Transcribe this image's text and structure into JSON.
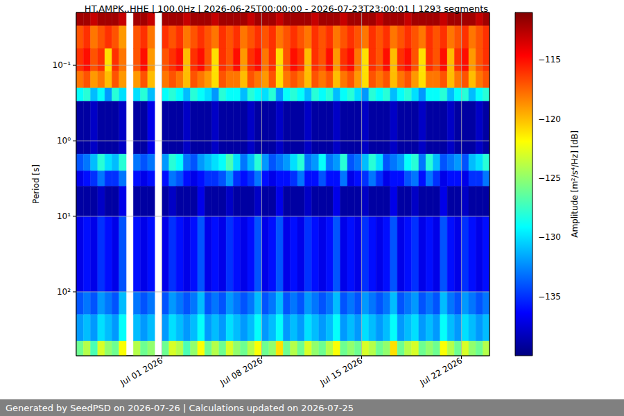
{
  "chart_data": {
    "type": "heatmap",
    "title": "HT.AMPK..HHE | 100.0Hz | 2026-06-25T00:00:00 - 2026-07-23T23:00:01 | 1293 segments",
    "footer": "Generated by SeedPSD on 2026-07-26 | Calculations updated on 2026-07-25",
    "ylabel": "Period [s]",
    "log": "y",
    "grid": true,
    "xlim": [
      "2026-06-25T00:00:00",
      "2026-07-23T23:00:01"
    ],
    "xticks": [
      {
        "value": "2026-07-01",
        "label": "Jul 01 2026"
      },
      {
        "value": "2026-07-08",
        "label": "Jul 08 2026"
      },
      {
        "value": "2026-07-15",
        "label": "Jul 15 2026"
      },
      {
        "value": "2026-07-22",
        "label": "Jul 22 2026"
      }
    ],
    "ylim": [
      0.02,
      700
    ],
    "yticks": [
      {
        "value": 0.1,
        "label": "10⁻¹"
      },
      {
        "value": 1,
        "label": "10⁰"
      },
      {
        "value": 10,
        "label": "10¹"
      },
      {
        "value": 100,
        "label": "10²"
      }
    ],
    "x": [
      "2026-06-25T00:00",
      "2026-06-25T12:00",
      "2026-06-26T00:00",
      "2026-06-26T12:00",
      "2026-06-27T00:00",
      "2026-06-27T12:00",
      "2026-06-28T00:00",
      "2026-06-28T12:00",
      "2026-06-29T00:00",
      "2026-06-29T12:00",
      "2026-06-30T00:00",
      "2026-06-30T12:00",
      "2026-07-01T00:00",
      "2026-07-01T12:00",
      "2026-07-02T00:00",
      "2026-07-02T12:00",
      "2026-07-03T00:00",
      "2026-07-03T12:00",
      "2026-07-04T00:00",
      "2026-07-04T12:00",
      "2026-07-05T00:00",
      "2026-07-05T12:00",
      "2026-07-06T00:00",
      "2026-07-06T12:00",
      "2026-07-07T00:00",
      "2026-07-07T12:00",
      "2026-07-08T00:00",
      "2026-07-08T12:00",
      "2026-07-09T00:00",
      "2026-07-09T12:00",
      "2026-07-10T00:00",
      "2026-07-10T12:00",
      "2026-07-11T00:00",
      "2026-07-11T12:00",
      "2026-07-12T00:00",
      "2026-07-12T12:00",
      "2026-07-13T00:00",
      "2026-07-13T12:00",
      "2026-07-14T00:00",
      "2026-07-14T12:00",
      "2026-07-15T00:00",
      "2026-07-15T12:00",
      "2026-07-16T00:00",
      "2026-07-16T12:00",
      "2026-07-17T00:00",
      "2026-07-17T12:00",
      "2026-07-18T00:00",
      "2026-07-18T12:00",
      "2026-07-19T00:00",
      "2026-07-19T12:00",
      "2026-07-20T00:00",
      "2026-07-20T12:00",
      "2026-07-21T00:00",
      "2026-07-21T12:00",
      "2026-07-22T00:00",
      "2026-07-22T12:00",
      "2026-07-23T00:00",
      "2026-07-23T12:00"
    ],
    "period_edges": [
      0.02,
      0.03,
      0.06,
      0.12,
      0.2,
      0.3,
      1.5,
      2.5,
      4,
      10,
      100,
      200,
      450,
      700
    ],
    "cells": [
      [
        -112,
        -112,
        -113,
        -112,
        -112,
        -112,
        -113,
        null,
        -112,
        -112,
        -113,
        null,
        -112,
        -112,
        -112,
        -113,
        -112,
        -112,
        -112,
        -113,
        -112,
        -112,
        -112,
        -112,
        -113,
        -112,
        -112,
        -112,
        -113,
        -112,
        -112,
        -112,
        -112,
        -113,
        -112,
        -112,
        -112,
        -113,
        -112,
        -112,
        -112,
        -112,
        -113,
        -112,
        -112,
        -112,
        -113,
        -112,
        -112,
        -112,
        -112,
        -113,
        -112,
        -112,
        -112,
        -112,
        -113,
        -112
      ],
      [
        -117,
        -116,
        -118,
        -117,
        -116,
        -117,
        -119,
        null,
        -117,
        -116,
        -118,
        null,
        -116,
        -117,
        -116,
        -118,
        -117,
        -116,
        -117,
        -118,
        -116,
        -117,
        -116,
        -118,
        -117,
        -116,
        -117,
        -116,
        -118,
        -117,
        -116,
        -117,
        -118,
        -116,
        -117,
        -116,
        -118,
        -117,
        -116,
        -117,
        -118,
        -116,
        -117,
        -116,
        -118,
        -117,
        -116,
        -117,
        -118,
        -116,
        -117,
        -116,
        -118,
        -117,
        -116,
        -118,
        -117,
        -116
      ],
      [
        -116,
        -115,
        -117,
        -116,
        -121,
        -116,
        -118,
        null,
        -117,
        -115,
        -119,
        null,
        -117,
        -116,
        -115,
        -120,
        -116,
        -115,
        -117,
        -121,
        -116,
        -117,
        -115,
        -119,
        -116,
        -115,
        -118,
        -116,
        -121,
        -117,
        -115,
        -116,
        -120,
        -116,
        -117,
        -115,
        -119,
        -116,
        -115,
        -118,
        -121,
        -116,
        -117,
        -115,
        -120,
        -116,
        -115,
        -117,
        -121,
        -116,
        -117,
        -115,
        -120,
        -116,
        -115,
        -119,
        -117,
        -116
      ],
      [
        -118,
        -117,
        -119,
        -118,
        -120,
        -117,
        -119,
        null,
        -119,
        -117,
        -120,
        null,
        -118,
        -117,
        -118,
        -120,
        -117,
        -118,
        -119,
        -121,
        -117,
        -118,
        -118,
        -120,
        -117,
        -118,
        -119,
        -117,
        -121,
        -118,
        -117,
        -118,
        -120,
        -117,
        -118,
        -117,
        -120,
        -118,
        -117,
        -119,
        -121,
        -117,
        -118,
        -117,
        -120,
        -118,
        -117,
        -119,
        -121,
        -118,
        -118,
        -117,
        -120,
        -118,
        -117,
        -120,
        -118,
        -117
      ],
      [
        -129,
        -128,
        -131,
        -129,
        -132,
        -128,
        -130,
        null,
        -130,
        -128,
        -131,
        null,
        -129,
        -128,
        -129,
        -131,
        -128,
        -129,
        -130,
        -132,
        -128,
        -129,
        -129,
        -131,
        -128,
        -129,
        -130,
        -128,
        -132,
        -129,
        -128,
        -129,
        -131,
        -128,
        -129,
        -128,
        -131,
        -129,
        -128,
        -130,
        -132,
        -128,
        -129,
        -128,
        -131,
        -129,
        -128,
        -130,
        -132,
        -129,
        -129,
        -128,
        -131,
        -129,
        -128,
        -131,
        -129,
        -128
      ],
      [
        -139,
        -139,
        -138,
        -139,
        -139,
        -139,
        -138,
        null,
        -139,
        -139,
        -137,
        null,
        -139,
        -139,
        -139,
        -138,
        -139,
        -139,
        -139,
        -138,
        -139,
        -139,
        -139,
        -139,
        -138,
        -139,
        -139,
        -139,
        -138,
        -139,
        -139,
        -139,
        -138,
        -139,
        -139,
        -139,
        -138,
        -139,
        -139,
        -139,
        -138,
        -139,
        -139,
        -139,
        -138,
        -139,
        -139,
        -139,
        -138,
        -139,
        -139,
        -139,
        -138,
        -139,
        -139,
        -139,
        -138,
        -139
      ],
      [
        -134,
        -133,
        -131,
        -128,
        -130,
        -131,
        -128,
        null,
        -133,
        -134,
        -133,
        null,
        -132,
        -128,
        -129,
        -133,
        -134,
        -132,
        -131,
        -130,
        -129,
        -127,
        -130,
        -133,
        -131,
        -128,
        -132,
        -134,
        -133,
        -132,
        -130,
        -128,
        -133,
        -132,
        -129,
        -133,
        -132,
        -128,
        -134,
        -133,
        -131,
        -128,
        -130,
        -134,
        -133,
        -132,
        -129,
        -128,
        -133,
        -128,
        -131,
        -134,
        -133,
        -132,
        -134,
        -131,
        -130,
        -128
      ],
      [
        -137,
        -136,
        -135,
        -133,
        -135,
        -135,
        -133,
        null,
        -136,
        -137,
        -136,
        null,
        -136,
        -133,
        -134,
        -136,
        -137,
        -136,
        -135,
        -135,
        -134,
        -132,
        -135,
        -136,
        -135,
        -133,
        -136,
        -137,
        -136,
        -136,
        -135,
        -133,
        -136,
        -136,
        -134,
        -136,
        -136,
        -133,
        -137,
        -136,
        -135,
        -133,
        -135,
        -137,
        -136,
        -136,
        -134,
        -133,
        -136,
        -133,
        -135,
        -137,
        -136,
        -136,
        -137,
        -135,
        -135,
        -133
      ],
      [
        -139,
        -139,
        -139,
        -138,
        -139,
        -139,
        -137,
        null,
        -139,
        -139,
        -139,
        null,
        -139,
        -138,
        -139,
        -139,
        -139,
        -137,
        -139,
        -139,
        -139,
        -138,
        -139,
        -139,
        -139,
        -138,
        -139,
        -139,
        -137,
        -139,
        -139,
        -139,
        -138,
        -139,
        -139,
        -139,
        -137,
        -139,
        -139,
        -139,
        -138,
        -139,
        -139,
        -139,
        -137,
        -139,
        -139,
        -138,
        -139,
        -139,
        -139,
        -137,
        -139,
        -139,
        -138,
        -139,
        -139,
        -139
      ],
      [
        -137,
        -136,
        -137,
        -135,
        -136,
        -137,
        -134,
        null,
        -136,
        -137,
        -136,
        null,
        -137,
        -135,
        -136,
        -137,
        -136,
        -134,
        -137,
        -136,
        -137,
        -135,
        -136,
        -137,
        -136,
        -134,
        -137,
        -136,
        -134,
        -137,
        -136,
        -137,
        -135,
        -136,
        -137,
        -136,
        -134,
        -137,
        -136,
        -137,
        -135,
        -136,
        -137,
        -136,
        -134,
        -137,
        -136,
        -135,
        -137,
        -136,
        -137,
        -134,
        -136,
        -137,
        -135,
        -136,
        -137,
        -136
      ],
      [
        -134,
        -133,
        -134,
        -132,
        -133,
        -134,
        -131,
        null,
        -133,
        -134,
        -133,
        null,
        -134,
        -132,
        -133,
        -134,
        -133,
        -131,
        -134,
        -133,
        -134,
        -132,
        -133,
        -134,
        -133,
        -131,
        -134,
        -133,
        -131,
        -134,
        -133,
        -134,
        -132,
        -133,
        -134,
        -133,
        -131,
        -134,
        -133,
        -134,
        -132,
        -133,
        -134,
        -133,
        -131,
        -134,
        -133,
        -132,
        -134,
        -133,
        -134,
        -131,
        -133,
        -134,
        -132,
        -133,
        -134,
        -133
      ],
      [
        -132,
        -131,
        -132,
        -130,
        -131,
        -132,
        -129,
        null,
        -131,
        -132,
        -131,
        null,
        -132,
        -130,
        -131,
        -132,
        -131,
        -129,
        -132,
        -131,
        -132,
        -130,
        -131,
        -132,
        -131,
        -129,
        -132,
        -131,
        -129,
        -132,
        -131,
        -132,
        -130,
        -131,
        -132,
        -131,
        -129,
        -132,
        -131,
        -132,
        -130,
        -131,
        -132,
        -131,
        -129,
        -132,
        -131,
        -130,
        -132,
        -131,
        -132,
        -129,
        -131,
        -132,
        -130,
        -131,
        -132,
        -131
      ],
      [
        -126,
        -124,
        -127,
        -123,
        -125,
        -126,
        -122,
        null,
        -124,
        -126,
        -125,
        null,
        -126,
        -123,
        -124,
        -127,
        -125,
        -122,
        -126,
        -124,
        -126,
        -123,
        -125,
        -126,
        -124,
        -122,
        -126,
        -125,
        -121,
        -126,
        -124,
        -126,
        -123,
        -125,
        -126,
        -124,
        -122,
        -126,
        -125,
        -126,
        -123,
        -124,
        -126,
        -125,
        -121,
        -126,
        -124,
        -123,
        -126,
        -125,
        -126,
        -122,
        -124,
        -126,
        -123,
        -125,
        -126,
        -124
      ]
    ],
    "colorbar": {
      "label": "Amplitude [m²/s⁴/Hz] [dB]",
      "range": [
        -140,
        -111
      ],
      "ticks": [
        {
          "value": -135,
          "label": "−135"
        },
        {
          "value": -130,
          "label": "−130"
        },
        {
          "value": -125,
          "label": "−125"
        },
        {
          "value": -120,
          "label": "−120"
        },
        {
          "value": -115,
          "label": "−115"
        }
      ]
    }
  }
}
